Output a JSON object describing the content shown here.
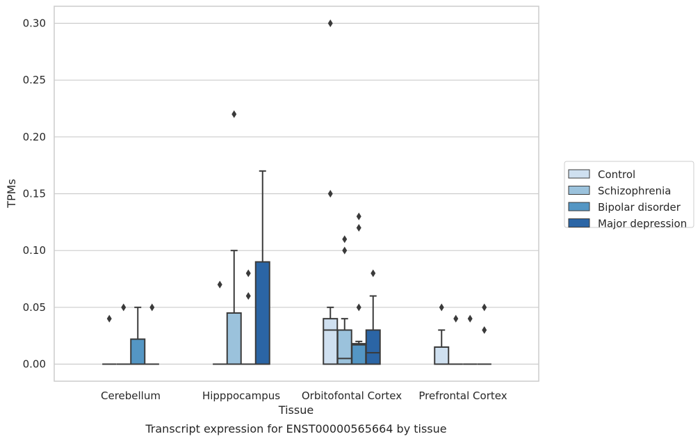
{
  "chart_data": {
    "type": "box",
    "xlabel": "Tissue",
    "ylabel": "TPMs",
    "caption": "Transcript expression for ENST00000565664 by tissue",
    "ylim": [
      -0.015,
      0.315
    ],
    "yticks": [
      "0.00",
      "0.05",
      "0.10",
      "0.15",
      "0.20",
      "0.25",
      "0.30"
    ],
    "ytick_values": [
      0,
      0.05,
      0.1,
      0.15,
      0.2,
      0.25,
      0.3
    ],
    "categories": [
      "Cerebellum",
      "Hipppocampus",
      "Orbitofontal Cortex",
      "Prefrontal Cortex"
    ],
    "grid": "horizontal",
    "legend_position": "right",
    "series": [
      {
        "name": "Control",
        "color": "#cfe0f0",
        "boxes": [
          {
            "q1": 0,
            "median": 0,
            "q3": 0,
            "whisker_low": 0,
            "whisker_high": 0,
            "outliers": [
              0.04
            ]
          },
          {
            "q1": 0,
            "median": 0,
            "q3": 0,
            "whisker_low": 0,
            "whisker_high": 0,
            "outliers": [
              0.07
            ]
          },
          {
            "q1": 0,
            "median": 0.03,
            "q3": 0.04,
            "whisker_low": 0,
            "whisker_high": 0.05,
            "outliers": [
              0.15,
              0.3
            ]
          },
          {
            "q1": 0,
            "median": 0,
            "q3": 0.015,
            "whisker_low": 0,
            "whisker_high": 0.03,
            "outliers": [
              0.05
            ]
          }
        ]
      },
      {
        "name": "Schizophrenia",
        "color": "#9bc2dc",
        "boxes": [
          {
            "q1": 0,
            "median": 0,
            "q3": 0,
            "whisker_low": 0,
            "whisker_high": 0,
            "outliers": [
              0.05
            ]
          },
          {
            "q1": 0,
            "median": 0,
            "q3": 0.045,
            "whisker_low": 0,
            "whisker_high": 0.1,
            "outliers": [
              0.22
            ]
          },
          {
            "q1": 0,
            "median": 0.005,
            "q3": 0.03,
            "whisker_low": 0,
            "whisker_high": 0.04,
            "outliers": [
              0.1,
              0.11
            ]
          },
          {
            "q1": 0,
            "median": 0,
            "q3": 0,
            "whisker_low": 0,
            "whisker_high": 0,
            "outliers": [
              0.04
            ]
          }
        ]
      },
      {
        "name": "Bipolar disorder",
        "color": "#5496c4",
        "boxes": [
          {
            "q1": 0,
            "median": 0,
            "q3": 0.022,
            "whisker_low": 0,
            "whisker_high": 0.05,
            "outliers": []
          },
          {
            "q1": 0,
            "median": 0,
            "q3": 0,
            "whisker_low": 0,
            "whisker_high": 0,
            "outliers": [
              0.06,
              0.08
            ]
          },
          {
            "q1": 0,
            "median": 0.017,
            "q3": 0.018,
            "whisker_low": 0,
            "whisker_high": 0.02,
            "outliers": [
              0.05,
              0.12,
              0.13
            ]
          },
          {
            "q1": 0,
            "median": 0,
            "q3": 0,
            "whisker_low": 0,
            "whisker_high": 0,
            "outliers": [
              0.04
            ]
          }
        ]
      },
      {
        "name": "Major depression",
        "color": "#2b65a5",
        "boxes": [
          {
            "q1": 0,
            "median": 0,
            "q3": 0,
            "whisker_low": 0,
            "whisker_high": 0,
            "outliers": [
              0.05
            ]
          },
          {
            "q1": 0,
            "median": 0,
            "q3": 0.09,
            "whisker_low": 0,
            "whisker_high": 0.17,
            "outliers": []
          },
          {
            "q1": 0,
            "median": 0.01,
            "q3": 0.03,
            "whisker_low": 0,
            "whisker_high": 0.06,
            "outliers": [
              0.08
            ]
          },
          {
            "q1": 0,
            "median": 0,
            "q3": 0,
            "whisker_low": 0,
            "whisker_high": 0,
            "outliers": [
              0.03,
              0.05
            ]
          }
        ]
      }
    ]
  }
}
